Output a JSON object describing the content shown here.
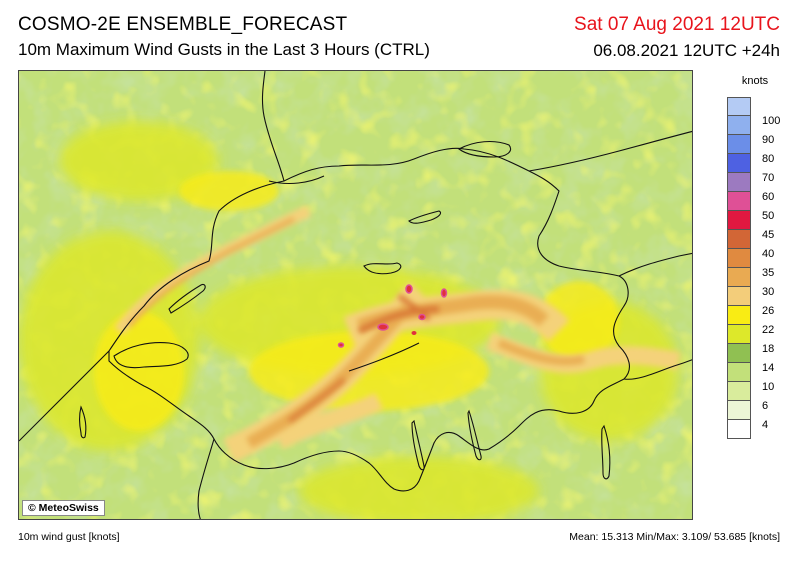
{
  "header": {
    "model_title": "COSMO-2E ENSEMBLE_FORECAST",
    "subtitle": "10m Maximum Wind Gusts in the Last 3 Hours (CTRL)",
    "valid_time": "Sat 07 Aug 2021 12UTC",
    "run_info": "06.08.2021 12UTC +24h",
    "valid_time_color": "#e8141c"
  },
  "map": {
    "copyright": "© MeteoSwiss",
    "colors": {
      "c6": "#d9ec9c",
      "c10": "#c2e07a",
      "c14": "#8fc152",
      "c18": "#dde82a",
      "c22": "#f9ec14",
      "c26": "#f4d27a",
      "c30": "#e9ae52",
      "c35": "#df9040",
      "c40": "#d87634",
      "c45": "#e0303c",
      "border": "#111111"
    }
  },
  "legend": {
    "unit": "knots",
    "levels": [
      {
        "label": "100",
        "color": "#b4cbf4"
      },
      {
        "label": "90",
        "color": "#8fb0ee"
      },
      {
        "label": "80",
        "color": "#6b8ee8"
      },
      {
        "label": "70",
        "color": "#4e61e2"
      },
      {
        "label": "60",
        "color": "#9c7ac0"
      },
      {
        "label": "50",
        "color": "#df5096"
      },
      {
        "label": "45",
        "color": "#e11840"
      },
      {
        "label": "40",
        "color": "#d26636"
      },
      {
        "label": "35",
        "color": "#e08a40"
      },
      {
        "label": "30",
        "color": "#e9aa52"
      },
      {
        "label": "26",
        "color": "#f3cd7a"
      },
      {
        "label": "22",
        "color": "#f9ec14"
      },
      {
        "label": "18",
        "color": "#dde82a"
      },
      {
        "label": "14",
        "color": "#90c052"
      },
      {
        "label": "10",
        "color": "#c2e07a"
      },
      {
        "label": "6",
        "color": "#d9ec9c"
      },
      {
        "label": "4",
        "color": "#ecf5d6"
      },
      {
        "label": "",
        "color": "#ffffff"
      }
    ]
  },
  "footer": {
    "field_label": "10m wind gust [knots]",
    "stats": "Mean: 15.313 Min/Max:  3.109/ 53.685 [knots]"
  }
}
